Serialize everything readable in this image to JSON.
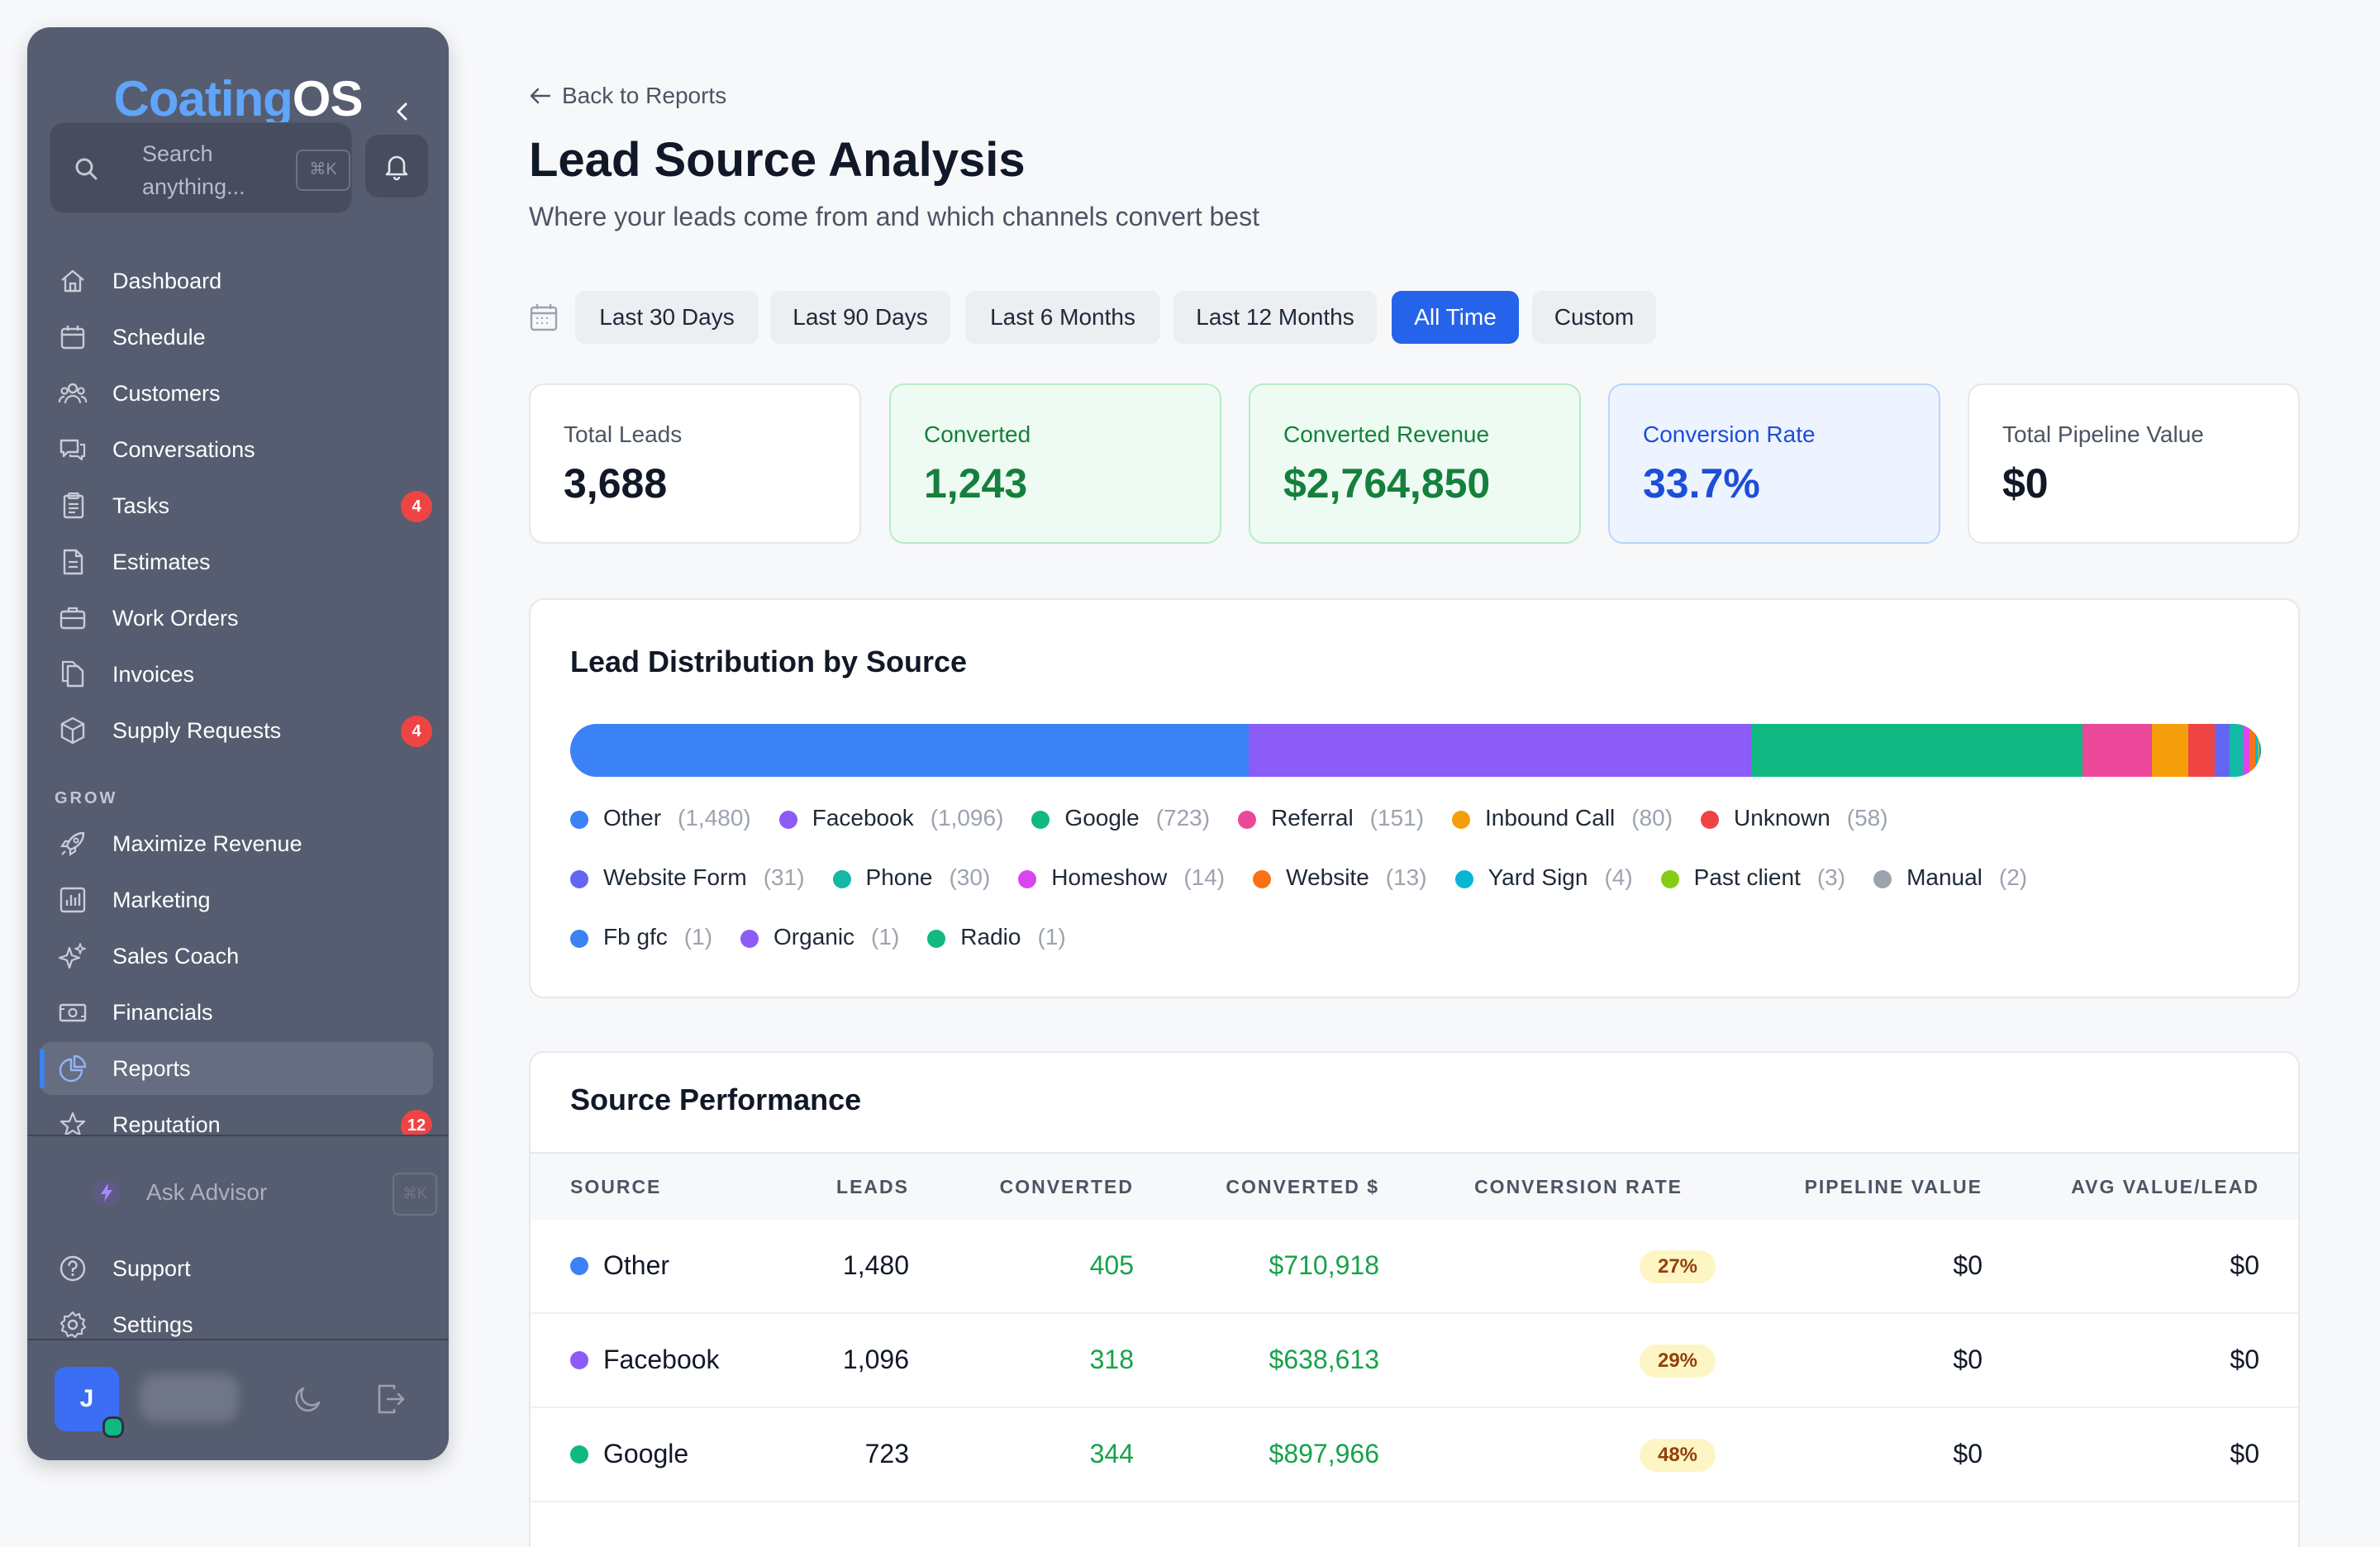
{
  "app": {
    "logo_part1": "Coating",
    "logo_part2": "OS"
  },
  "search": {
    "placeholder": "Search anything...",
    "shortcut": "⌘K"
  },
  "sidebar": {
    "items": [
      {
        "label": "Dashboard",
        "icon": "home-icon"
      },
      {
        "label": "Schedule",
        "icon": "calendar-icon"
      },
      {
        "label": "Customers",
        "icon": "users-icon"
      },
      {
        "label": "Conversations",
        "icon": "chat-icon"
      },
      {
        "label": "Tasks",
        "icon": "clipboard-icon",
        "badge": "4"
      },
      {
        "label": "Estimates",
        "icon": "document-icon"
      },
      {
        "label": "Work Orders",
        "icon": "briefcase-icon"
      },
      {
        "label": "Invoices",
        "icon": "files-icon"
      },
      {
        "label": "Supply Requests",
        "icon": "box-icon",
        "badge": "4"
      }
    ],
    "grow_label": "GROW",
    "grow_items": [
      {
        "label": "Maximize Revenue",
        "icon": "rocket-icon"
      },
      {
        "label": "Marketing",
        "icon": "bar-chart-icon"
      },
      {
        "label": "Sales Coach",
        "icon": "sparkles-icon"
      },
      {
        "label": "Financials",
        "icon": "cash-icon"
      },
      {
        "label": "Reports",
        "icon": "pie-chart-icon",
        "active": true
      },
      {
        "label": "Reputation",
        "icon": "star-icon",
        "badge": "12"
      }
    ],
    "advisor": {
      "label": "Ask Advisor",
      "shortcut": "⌘K"
    },
    "footer_items": [
      {
        "label": "Support",
        "icon": "help-circle-icon"
      },
      {
        "label": "Settings",
        "icon": "settings-icon"
      }
    ],
    "profile": {
      "initial": "J"
    }
  },
  "page": {
    "back_label": "Back to Reports",
    "title": "Lead Source Analysis",
    "subtitle": "Where your leads come from and which channels convert best"
  },
  "filters": [
    {
      "label": "Last 30 Days",
      "selected": false
    },
    {
      "label": "Last 90 Days",
      "selected": false
    },
    {
      "label": "Last 6 Months",
      "selected": false
    },
    {
      "label": "Last 12 Months",
      "selected": false
    },
    {
      "label": "All Time",
      "selected": true
    },
    {
      "label": "Custom",
      "selected": false
    }
  ],
  "stats": [
    {
      "label": "Total Leads",
      "value": "3,688",
      "tone": "neutral"
    },
    {
      "label": "Converted",
      "value": "1,243",
      "tone": "green"
    },
    {
      "label": "Converted Revenue",
      "value": "$2,764,850",
      "tone": "green"
    },
    {
      "label": "Conversion Rate",
      "value": "33.7%",
      "tone": "blue"
    },
    {
      "label": "Total Pipeline Value",
      "value": "$0",
      "tone": "neutral"
    }
  ],
  "distribution": {
    "title": "Lead Distribution by Source",
    "sources": [
      {
        "name": "Other",
        "count": "(1,480)",
        "value": 1480,
        "color": "#3b82f6"
      },
      {
        "name": "Facebook",
        "count": "(1,096)",
        "value": 1096,
        "color": "#8b5cf6"
      },
      {
        "name": "Google",
        "count": "(723)",
        "value": 723,
        "color": "#10b981"
      },
      {
        "name": "Referral",
        "count": "(151)",
        "value": 151,
        "color": "#ec4899"
      },
      {
        "name": "Inbound Call",
        "count": "(80)",
        "value": 80,
        "color": "#f59e0b"
      },
      {
        "name": "Unknown",
        "count": "(58)",
        "value": 58,
        "color": "#ef4444"
      },
      {
        "name": "Website Form",
        "count": "(31)",
        "value": 31,
        "color": "#6366f1"
      },
      {
        "name": "Phone",
        "count": "(30)",
        "value": 30,
        "color": "#14b8a6"
      },
      {
        "name": "Homeshow",
        "count": "(14)",
        "value": 14,
        "color": "#d946ef"
      },
      {
        "name": "Website",
        "count": "(13)",
        "value": 13,
        "color": "#f97316"
      },
      {
        "name": "Yard Sign",
        "count": "(4)",
        "value": 4,
        "color": "#06b6d4"
      },
      {
        "name": "Past client",
        "count": "(3)",
        "value": 3,
        "color": "#84cc16"
      },
      {
        "name": "Manual",
        "count": "(2)",
        "value": 2,
        "color": "#9ca3af"
      },
      {
        "name": "Fb gfc",
        "count": "(1)",
        "value": 1,
        "color": "#3b82f6"
      },
      {
        "name": "Organic",
        "count": "(1)",
        "value": 1,
        "color": "#8b5cf6"
      },
      {
        "name": "Radio",
        "count": "(1)",
        "value": 1,
        "color": "#10b981"
      }
    ]
  },
  "performance": {
    "title": "Source Performance",
    "headers": [
      "SOURCE",
      "LEADS",
      "CONVERTED",
      "CONVERTED $",
      "CONVERSION RATE",
      "PIPELINE VALUE",
      "AVG VALUE/LEAD"
    ],
    "rows": [
      {
        "source": "Other",
        "color": "#3b82f6",
        "leads": "1,480",
        "converted": "405",
        "converted_usd": "$710,918",
        "rate": "27%",
        "pipeline": "$0",
        "avg": "$0"
      },
      {
        "source": "Facebook",
        "color": "#8b5cf6",
        "leads": "1,096",
        "converted": "318",
        "converted_usd": "$638,613",
        "rate": "29%",
        "pipeline": "$0",
        "avg": "$0"
      },
      {
        "source": "Google",
        "color": "#10b981",
        "leads": "723",
        "converted": "344",
        "converted_usd": "$897,966",
        "rate": "48%",
        "pipeline": "$0",
        "avg": "$0"
      }
    ]
  }
}
